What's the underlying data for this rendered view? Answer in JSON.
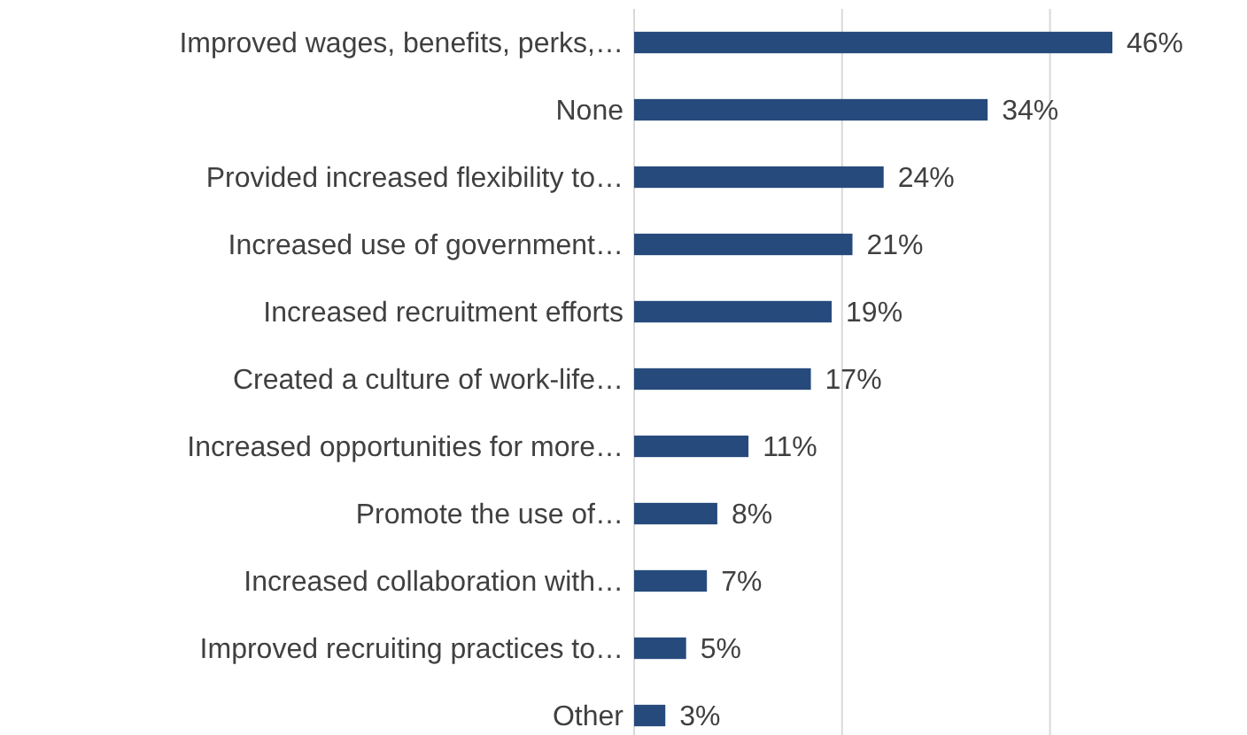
{
  "chart_data": {
    "type": "bar",
    "orientation": "horizontal",
    "categories": [
      "Improved wages, benefits, perks,…",
      "None",
      "Provided increased flexibility to…",
      "Increased use of government…",
      "Increased recruitment efforts",
      "Created a culture of work-life…",
      "Increased opportunities for more…",
      "Promote the use of…",
      "Increased collaboration with…",
      "Improved recruiting practices to…",
      "Other"
    ],
    "values": [
      46,
      34,
      24,
      21,
      19,
      17,
      11,
      8,
      7,
      5,
      3
    ],
    "value_labels": [
      "46%",
      "34%",
      "24%",
      "21%",
      "19%",
      "17%",
      "11%",
      "8%",
      "7%",
      "5%",
      "3%"
    ],
    "color": "#264a7c",
    "ref_lines": [
      {
        "axis": "x",
        "value": 20,
        "color": "#d9d9d9"
      },
      {
        "axis": "x",
        "value": 40,
        "color": "#d9d9d9"
      }
    ],
    "tick_labels": "y"
  }
}
